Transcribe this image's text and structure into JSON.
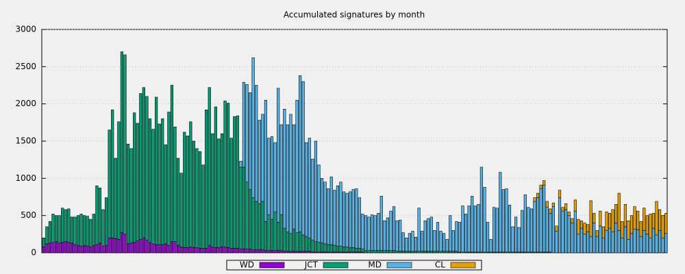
{
  "chart_data": {
    "type": "stacked_bar",
    "title": "Accumulated signatures by month",
    "categories": [
      null,
      null,
      null,
      null,
      null,
      null,
      null,
      null,
      null,
      null,
      null,
      null,
      null,
      null,
      null,
      null,
      null,
      null,
      null,
      null,
      null,
      null,
      null,
      null,
      null,
      null,
      null,
      null,
      null,
      null,
      null,
      null,
      null,
      null,
      null,
      null,
      null,
      null,
      null,
      null,
      null,
      null,
      null,
      null,
      null,
      null,
      null,
      null,
      null,
      null,
      null,
      null,
      null,
      null,
      null,
      null,
      null,
      null,
      null,
      null,
      null,
      null,
      null,
      null,
      null,
      null,
      null,
      null,
      null,
      null,
      null,
      null,
      null,
      null,
      null,
      null,
      null,
      null,
      null,
      null,
      null,
      null,
      null,
      null,
      null,
      null,
      null,
      null,
      null,
      null,
      null,
      null,
      null,
      null,
      null,
      null,
      null,
      null,
      null,
      null,
      null,
      null,
      null,
      null,
      null,
      null,
      null,
      null,
      null,
      null,
      null,
      null,
      null,
      null,
      null,
      null,
      null,
      null,
      null,
      null,
      null,
      null,
      null,
      null,
      null,
      null,
      null,
      null,
      null,
      null,
      null,
      null,
      null,
      null,
      null,
      null,
      null,
      null,
      null,
      null,
      null,
      null,
      null,
      null,
      null,
      null,
      null,
      null,
      null,
      null,
      null,
      null,
      null,
      null,
      null,
      null,
      null,
      null,
      null,
      null,
      null,
      null,
      null,
      null,
      null,
      null,
      null,
      null,
      null,
      null,
      null,
      null,
      null,
      null,
      null,
      null,
      null,
      null,
      null,
      null,
      null,
      null,
      null,
      null,
      null,
      null,
      null,
      null,
      null,
      null,
      null,
      null,
      null,
      null,
      null,
      null,
      null,
      null,
      null,
      null
    ],
    "series": [
      {
        "name": "WD",
        "color": "#9400d3",
        "values": [
          80,
          120,
          130,
          140,
          150,
          130,
          140,
          150,
          140,
          130,
          110,
          100,
          90,
          100,
          90,
          80,
          100,
          110,
          130,
          90,
          100,
          200,
          200,
          190,
          180,
          270,
          250,
          120,
          130,
          140,
          160,
          180,
          200,
          170,
          140,
          120,
          110,
          110,
          110,
          120,
          100,
          150,
          150,
          100,
          80,
          70,
          70,
          80,
          70,
          70,
          60,
          60,
          60,
          100,
          80,
          70,
          70,
          80,
          80,
          70,
          60,
          60,
          60,
          50,
          50,
          50,
          50,
          40,
          40,
          40,
          40,
          30,
          30,
          30,
          30,
          30,
          30,
          20,
          20,
          20,
          20,
          20,
          20,
          20,
          20,
          20,
          10,
          10,
          10,
          10,
          10,
          10,
          10,
          10,
          10,
          10,
          10,
          10,
          10,
          10,
          10,
          10,
          10,
          0,
          0,
          0,
          0,
          0,
          0,
          0,
          0,
          0,
          0,
          0,
          0,
          0,
          0,
          0,
          0,
          0,
          0,
          0,
          0,
          0,
          0,
          0,
          0,
          0,
          0,
          0,
          0,
          0,
          0,
          0,
          0,
          0,
          0,
          0,
          0,
          0,
          0,
          0,
          0,
          0,
          0,
          0,
          0,
          0,
          0,
          0,
          0,
          0,
          0,
          0,
          0,
          0,
          0,
          0,
          0,
          0,
          0,
          0,
          0,
          0,
          0,
          0,
          0,
          0,
          0,
          0,
          0,
          0,
          0,
          0,
          0,
          0,
          0,
          0,
          0,
          0,
          0,
          0,
          0,
          0,
          0,
          0,
          0,
          0,
          0,
          0,
          0,
          0,
          0,
          0,
          0,
          0,
          0,
          0,
          0,
          0
        ]
      },
      {
        "name": "JCT",
        "color": "#009e73",
        "values": [
          120,
          230,
          290,
          380,
          350,
          370,
          460,
          430,
          450,
          350,
          370,
          400,
          430,
          400,
          400,
          370,
          420,
          790,
          740,
          490,
          640,
          1450,
          1720,
          1080,
          1580,
          2430,
          2410,
          1340,
          1270,
          1740,
          1580,
          1960,
          2020,
          1930,
          1660,
          1540,
          1980,
          1620,
          1690,
          1330,
          1790,
          2100,
          1540,
          1170,
          990,
          1550,
          1500,
          1680,
          1430,
          1330,
          1300,
          1120,
          1860,
          2120,
          1520,
          1890,
          1460,
          1520,
          1960,
          1940,
          1480,
          1770,
          1780,
          1100,
          1100,
          900,
          800,
          700,
          650,
          620,
          650,
          390,
          480,
          420,
          520,
          380,
          480,
          310,
          260,
          240,
          300,
          250,
          260,
          220,
          200,
          180,
          160,
          140,
          130,
          120,
          110,
          100,
          100,
          90,
          80,
          80,
          70,
          70,
          60,
          60,
          50,
          50,
          40,
          30,
          30,
          30,
          30,
          30,
          30,
          30,
          30,
          30,
          30,
          20,
          20,
          20,
          20,
          20,
          20,
          20,
          20,
          20,
          20,
          20,
          20,
          20,
          20,
          20,
          20,
          20,
          20,
          20,
          20,
          10,
          10,
          10,
          10,
          10,
          10,
          10,
          10,
          10,
          10,
          10,
          10,
          10,
          10,
          10,
          10,
          10,
          10,
          10,
          10,
          10,
          10,
          10,
          10,
          10,
          10,
          10,
          10,
          10,
          10,
          0,
          0,
          0,
          0,
          0,
          0,
          0,
          0,
          0,
          0,
          0,
          0,
          0,
          0,
          0,
          0,
          0,
          0,
          0,
          0,
          0,
          0,
          0,
          0,
          0,
          0,
          0,
          0,
          0,
          0,
          0,
          0,
          0,
          0,
          0,
          0,
          0
        ]
      },
      {
        "name": "MD",
        "color": "#56b4e9",
        "values": [
          0,
          0,
          0,
          0,
          0,
          0,
          0,
          0,
          0,
          0,
          0,
          0,
          0,
          0,
          0,
          0,
          0,
          0,
          0,
          0,
          0,
          0,
          0,
          0,
          0,
          0,
          0,
          0,
          0,
          0,
          0,
          0,
          0,
          0,
          0,
          0,
          0,
          0,
          0,
          0,
          0,
          0,
          0,
          0,
          0,
          0,
          0,
          0,
          0,
          0,
          0,
          0,
          0,
          0,
          0,
          0,
          0,
          0,
          0,
          0,
          0,
          0,
          0,
          80,
          1140,
          1310,
          1300,
          1880,
          1560,
          1120,
          1170,
          1630,
          1030,
          1110,
          930,
          1800,
          1210,
          1600,
          1440,
          1600,
          1400,
          1780,
          2100,
          2060,
          1260,
          1340,
          1090,
          1350,
          1040,
          870,
          830,
          750,
          910,
          740,
          810,
          860,
          740,
          720,
          750,
          780,
          800,
          680,
          470,
          470,
          450,
          480,
          470,
          500,
          730,
          400,
          440,
          530,
          590,
          410,
          420,
          250,
          180,
          240,
          270,
          190,
          580,
          270,
          410,
          440,
          460,
          280,
          390,
          270,
          240,
          160,
          480,
          280,
          400,
          400,
          620,
          510,
          620,
          750,
          620,
          640,
          1140,
          870,
          400,
          170,
          600,
          590,
          1070,
          840,
          850,
          630,
          340,
          470,
          330,
          560,
          770,
          600,
          580,
          680,
          730,
          850,
          900,
          600,
          520,
          620,
          290,
          740,
          560,
          580,
          500,
          400,
          560,
          250,
          330,
          250,
          280,
          220,
          400,
          220,
          360,
          200,
          300,
          330,
          280,
          400,
          300,
          200,
          350,
          180,
          260,
          320,
          310,
          220,
          300,
          250,
          200,
          330,
          240,
          300,
          200,
          260
        ]
      },
      {
        "name": "CL",
        "color": "#e69f00",
        "values": [
          0,
          0,
          0,
          0,
          0,
          0,
          0,
          0,
          0,
          0,
          0,
          0,
          0,
          0,
          0,
          0,
          0,
          0,
          0,
          0,
          0,
          0,
          0,
          0,
          0,
          0,
          0,
          0,
          0,
          0,
          0,
          0,
          0,
          0,
          0,
          0,
          0,
          0,
          0,
          0,
          0,
          0,
          0,
          0,
          0,
          0,
          0,
          0,
          0,
          0,
          0,
          0,
          0,
          0,
          0,
          0,
          0,
          0,
          0,
          0,
          0,
          0,
          0,
          0,
          0,
          0,
          0,
          0,
          0,
          0,
          0,
          0,
          0,
          0,
          0,
          0,
          0,
          0,
          0,
          0,
          0,
          0,
          0,
          0,
          0,
          0,
          0,
          0,
          0,
          0,
          0,
          0,
          0,
          0,
          0,
          0,
          0,
          0,
          0,
          0,
          0,
          0,
          0,
          0,
          0,
          0,
          0,
          0,
          0,
          0,
          0,
          0,
          0,
          0,
          0,
          0,
          0,
          0,
          0,
          0,
          0,
          0,
          0,
          0,
          0,
          0,
          0,
          0,
          0,
          0,
          0,
          0,
          0,
          0,
          0,
          0,
          0,
          0,
          0,
          0,
          0,
          0,
          0,
          0,
          0,
          0,
          0,
          0,
          0,
          0,
          0,
          0,
          0,
          0,
          0,
          0,
          0,
          50,
          60,
          50,
          60,
          80,
          60,
          50,
          70,
          100,
          50,
          80,
          50,
          60,
          150,
          200,
          100,
          150,
          100,
          480,
          130,
          80,
          200,
          150,
          250,
          200,
          300,
          250,
          500,
          220,
          300,
          250,
          240,
          300,
          250,
          200,
          300,
          250,
          320,
          200,
          450,
          280,
          300,
          270
        ]
      }
    ],
    "ylim": [
      0,
      3000
    ],
    "yticks": [
      0,
      500,
      1000,
      1500,
      2000,
      2500,
      3000
    ],
    "grid": true,
    "legend": "bottom"
  }
}
